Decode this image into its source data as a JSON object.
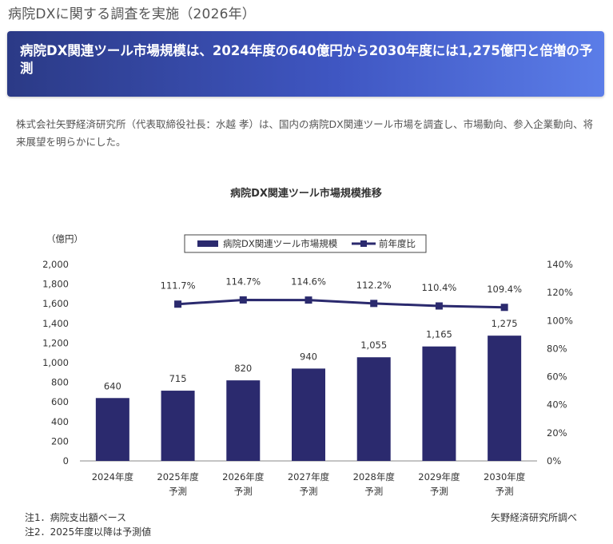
{
  "page": {
    "title": "病院DXに関する調査を実施（2026年）",
    "headline": "病院DX関連ツール市場規模は、2024年度の640億円から2030年度には1,275億円と倍増の予測",
    "intro": "株式会社矢野経済研究所（代表取締役社長：水越 孝）は、国内の病院DX関連ツール市場を調査し、市場動向、参入企業動向、将来展望を明らかにした。"
  },
  "chart_data": {
    "type": "bar",
    "title": "病院DX関連ツール市場規模推移",
    "categories": [
      "2024年度",
      "2025年度\n予測",
      "2026年度\n予測",
      "2027年度\n予測",
      "2028年度\n予測",
      "2029年度\n予測",
      "2030年度\n予測"
    ],
    "series": [
      {
        "name": "病院DX関連ツール市場規模",
        "type": "bar",
        "axis": "left",
        "color": "#2b2a6e",
        "values": [
          640,
          715,
          820,
          940,
          1055,
          1165,
          1275
        ],
        "labels": [
          "640",
          "715",
          "820",
          "940",
          "1,055",
          "1,165",
          "1,275"
        ]
      },
      {
        "name": "前年度比",
        "type": "line",
        "axis": "right",
        "color": "#2b2a6e",
        "values": [
          null,
          111.7,
          114.7,
          114.6,
          112.2,
          110.4,
          109.4
        ],
        "labels": [
          null,
          "111.7%",
          "114.7%",
          "114.6%",
          "112.2%",
          "110.4%",
          "109.4%"
        ]
      }
    ],
    "y_left": {
      "unit_label": "（億円）",
      "ylim": [
        0,
        2000
      ],
      "ticks": [
        "0",
        "200",
        "400",
        "600",
        "800",
        "1,000",
        "1,200",
        "1,400",
        "1,600",
        "1,800",
        "2,000"
      ]
    },
    "y_right": {
      "ylim": [
        0,
        140
      ],
      "ticks": [
        "0%",
        "20%",
        "40%",
        "60%",
        "80%",
        "100%",
        "120%",
        "140%"
      ]
    },
    "grid": false,
    "legend": "top-center"
  },
  "notes": {
    "note1": "注1．病院支出額ベース",
    "note2": "注2．2025年度以降は予測値",
    "source": "矢野経済研究所調べ"
  }
}
